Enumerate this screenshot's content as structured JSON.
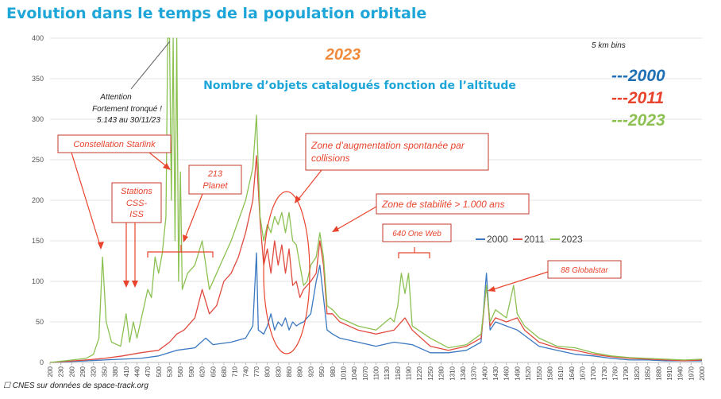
{
  "slide": {
    "title": "Evolution dans le temps de la population orbitale",
    "footer": "☐ CNES sur données de space-track.org"
  },
  "chart_data": {
    "type": "line",
    "title": "Nombre d’objets catalogués fonction de l’altitude",
    "year_label": "2023",
    "bin_note": "5 km bins",
    "ylim": [
      0,
      400
    ],
    "yticks": [
      0,
      50,
      100,
      150,
      200,
      250,
      300,
      350,
      400
    ],
    "xlim": [
      200,
      2000
    ],
    "xticks": [
      200,
      230,
      260,
      290,
      320,
      350,
      380,
      410,
      440,
      470,
      500,
      530,
      560,
      590,
      620,
      650,
      680,
      710,
      740,
      770,
      800,
      830,
      860,
      890,
      920,
      950,
      980,
      1010,
      1040,
      1070,
      1100,
      1130,
      1160,
      1190,
      1220,
      1250,
      1280,
      1310,
      1340,
      1370,
      1400,
      1430,
      1460,
      1490,
      1520,
      1550,
      1580,
      1610,
      1640,
      1670,
      1700,
      1730,
      1760,
      1790,
      1820,
      1850,
      1880,
      1910,
      1940,
      1970,
      2000
    ],
    "grid": true,
    "big_legend": [
      {
        "label": "---2000",
        "color": "#1f6fb5"
      },
      {
        "label": "---2011",
        "color": "#e8432c"
      },
      {
        "label": "---2023",
        "color": "#8cc152"
      }
    ],
    "legend": [
      {
        "label": "2000",
        "color": "#3a78c0"
      },
      {
        "label": "2011",
        "color": "#e04a3f"
      },
      {
        "label": "2023",
        "color": "#8cc152"
      }
    ],
    "series": [
      {
        "name": "2000",
        "color": "#3a78c0",
        "points": [
          [
            200,
            0
          ],
          [
            300,
            2
          ],
          [
            350,
            3
          ],
          [
            400,
            4
          ],
          [
            450,
            5
          ],
          [
            500,
            8
          ],
          [
            550,
            15
          ],
          [
            600,
            18
          ],
          [
            630,
            30
          ],
          [
            650,
            22
          ],
          [
            700,
            25
          ],
          [
            740,
            30
          ],
          [
            760,
            45
          ],
          [
            770,
            135
          ],
          [
            775,
            40
          ],
          [
            790,
            35
          ],
          [
            800,
            45
          ],
          [
            810,
            60
          ],
          [
            820,
            40
          ],
          [
            830,
            50
          ],
          [
            840,
            45
          ],
          [
            850,
            55
          ],
          [
            860,
            40
          ],
          [
            870,
            50
          ],
          [
            880,
            45
          ],
          [
            890,
            48
          ],
          [
            900,
            50
          ],
          [
            910,
            55
          ],
          [
            920,
            60
          ],
          [
            935,
            100
          ],
          [
            945,
            120
          ],
          [
            955,
            80
          ],
          [
            965,
            40
          ],
          [
            980,
            35
          ],
          [
            1000,
            30
          ],
          [
            1050,
            25
          ],
          [
            1100,
            20
          ],
          [
            1150,
            25
          ],
          [
            1200,
            22
          ],
          [
            1250,
            12
          ],
          [
            1300,
            12
          ],
          [
            1350,
            15
          ],
          [
            1390,
            25
          ],
          [
            1405,
            110
          ],
          [
            1415,
            40
          ],
          [
            1430,
            50
          ],
          [
            1460,
            45
          ],
          [
            1490,
            40
          ],
          [
            1520,
            30
          ],
          [
            1550,
            20
          ],
          [
            1600,
            15
          ],
          [
            1650,
            10
          ],
          [
            1700,
            8
          ],
          [
            1750,
            5
          ],
          [
            1800,
            3
          ],
          [
            1850,
            3
          ],
          [
            1900,
            2
          ],
          [
            1950,
            2
          ],
          [
            2000,
            2
          ]
        ]
      },
      {
        "name": "2011",
        "color": "#e04a3f",
        "points": [
          [
            200,
            0
          ],
          [
            300,
            3
          ],
          [
            350,
            5
          ],
          [
            400,
            8
          ],
          [
            450,
            12
          ],
          [
            500,
            15
          ],
          [
            530,
            25
          ],
          [
            550,
            35
          ],
          [
            570,
            40
          ],
          [
            600,
            55
          ],
          [
            620,
            90
          ],
          [
            640,
            60
          ],
          [
            660,
            70
          ],
          [
            680,
            100
          ],
          [
            700,
            110
          ],
          [
            720,
            130
          ],
          [
            740,
            160
          ],
          [
            760,
            200
          ],
          [
            770,
            255
          ],
          [
            780,
            175
          ],
          [
            790,
            120
          ],
          [
            800,
            140
          ],
          [
            810,
            110
          ],
          [
            820,
            150
          ],
          [
            830,
            120
          ],
          [
            840,
            145
          ],
          [
            850,
            110
          ],
          [
            860,
            140
          ],
          [
            870,
            95
          ],
          [
            880,
            100
          ],
          [
            890,
            80
          ],
          [
            900,
            90
          ],
          [
            920,
            100
          ],
          [
            935,
            110
          ],
          [
            945,
            150
          ],
          [
            955,
            120
          ],
          [
            965,
            60
          ],
          [
            980,
            60
          ],
          [
            1000,
            50
          ],
          [
            1050,
            40
          ],
          [
            1100,
            35
          ],
          [
            1150,
            40
          ],
          [
            1180,
            55
          ],
          [
            1200,
            40
          ],
          [
            1250,
            20
          ],
          [
            1300,
            15
          ],
          [
            1350,
            20
          ],
          [
            1390,
            30
          ],
          [
            1405,
            95
          ],
          [
            1415,
            45
          ],
          [
            1430,
            55
          ],
          [
            1460,
            50
          ],
          [
            1490,
            55
          ],
          [
            1510,
            40
          ],
          [
            1550,
            25
          ],
          [
            1600,
            18
          ],
          [
            1650,
            15
          ],
          [
            1700,
            10
          ],
          [
            1750,
            7
          ],
          [
            1800,
            5
          ],
          [
            1850,
            4
          ],
          [
            1900,
            3
          ],
          [
            1950,
            2
          ],
          [
            2000,
            3
          ]
        ]
      },
      {
        "name": "2023",
        "color": "#8cc152",
        "points": [
          [
            200,
            0
          ],
          [
            300,
            5
          ],
          [
            320,
            10
          ],
          [
            335,
            30
          ],
          [
            345,
            130
          ],
          [
            355,
            50
          ],
          [
            370,
            25
          ],
          [
            395,
            20
          ],
          [
            410,
            60
          ],
          [
            420,
            25
          ],
          [
            430,
            50
          ],
          [
            440,
            30
          ],
          [
            455,
            60
          ],
          [
            470,
            90
          ],
          [
            480,
            80
          ],
          [
            490,
            130
          ],
          [
            500,
            110
          ],
          [
            510,
            135
          ],
          [
            520,
            180
          ],
          [
            525,
            400
          ],
          [
            530,
            400
          ],
          [
            535,
            200
          ],
          [
            540,
            400
          ],
          [
            545,
            150
          ],
          [
            550,
            400
          ],
          [
            555,
            100
          ],
          [
            560,
            235
          ],
          [
            565,
            90
          ],
          [
            580,
            110
          ],
          [
            600,
            120
          ],
          [
            620,
            150
          ],
          [
            640,
            90
          ],
          [
            660,
            110
          ],
          [
            680,
            130
          ],
          [
            700,
            150
          ],
          [
            720,
            175
          ],
          [
            740,
            200
          ],
          [
            760,
            240
          ],
          [
            770,
            305
          ],
          [
            780,
            180
          ],
          [
            790,
            150
          ],
          [
            800,
            170
          ],
          [
            810,
            160
          ],
          [
            820,
            180
          ],
          [
            830,
            170
          ],
          [
            840,
            185
          ],
          [
            850,
            160
          ],
          [
            860,
            185
          ],
          [
            870,
            150
          ],
          [
            880,
            145
          ],
          [
            890,
            120
          ],
          [
            900,
            95
          ],
          [
            910,
            100
          ],
          [
            920,
            120
          ],
          [
            935,
            130
          ],
          [
            945,
            160
          ],
          [
            955,
            130
          ],
          [
            965,
            70
          ],
          [
            980,
            65
          ],
          [
            1000,
            55
          ],
          [
            1050,
            45
          ],
          [
            1100,
            40
          ],
          [
            1140,
            55
          ],
          [
            1150,
            50
          ],
          [
            1160,
            70
          ],
          [
            1170,
            110
          ],
          [
            1180,
            85
          ],
          [
            1190,
            110
          ],
          [
            1200,
            45
          ],
          [
            1250,
            30
          ],
          [
            1300,
            18
          ],
          [
            1350,
            22
          ],
          [
            1390,
            35
          ],
          [
            1405,
            95
          ],
          [
            1415,
            50
          ],
          [
            1430,
            65
          ],
          [
            1460,
            55
          ],
          [
            1480,
            95
          ],
          [
            1490,
            60
          ],
          [
            1510,
            45
          ],
          [
            1550,
            30
          ],
          [
            1600,
            20
          ],
          [
            1650,
            18
          ],
          [
            1700,
            12
          ],
          [
            1750,
            8
          ],
          [
            1800,
            6
          ],
          [
            1850,
            5
          ],
          [
            1900,
            4
          ],
          [
            1950,
            3
          ],
          [
            2000,
            4
          ]
        ]
      }
    ],
    "annotations": [
      {
        "text": "Attention",
        "boxed": false
      },
      {
        "text": "Fortement tronqué !",
        "boxed": false
      },
      {
        "text": "5.143 au 30/11/23",
        "boxed": false
      },
      {
        "text": "Constellation Starlink",
        "boxed": true
      },
      {
        "text": "Stations",
        "boxed": true
      },
      {
        "text": "CSS-",
        "boxed": true
      },
      {
        "text": "ISS",
        "boxed": true
      },
      {
        "text": "213",
        "boxed": true
      },
      {
        "text": "Planet",
        "boxed": true
      },
      {
        "text": "Zone d’augmentation spontanée par",
        "boxed": true
      },
      {
        "text": "collisions",
        "boxed": true
      },
      {
        "text": "Zone de stabilité > 1.000 ans",
        "boxed": true
      },
      {
        "text": "640 One Web",
        "boxed": true
      },
      {
        "text": "88 Globalstar",
        "boxed": true
      }
    ]
  }
}
